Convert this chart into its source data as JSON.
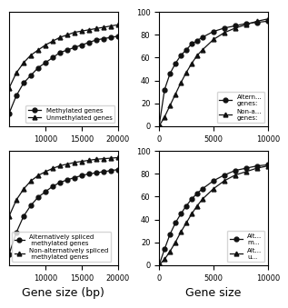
{
  "top_left": {
    "x": [
      5000,
      6000,
      7000,
      8000,
      9000,
      10000,
      11000,
      12000,
      13000,
      14000,
      15000,
      16000,
      17000,
      18000,
      19000,
      20000
    ],
    "y_methylated": [
      95.5,
      96.2,
      96.7,
      97.0,
      97.3,
      97.5,
      97.7,
      97.9,
      98.0,
      98.1,
      98.2,
      98.3,
      98.4,
      98.45,
      98.5,
      98.55
    ],
    "y_unmethylated": [
      96.5,
      97.1,
      97.5,
      97.8,
      98.0,
      98.2,
      98.35,
      98.5,
      98.6,
      98.7,
      98.75,
      98.8,
      98.85,
      98.9,
      98.95,
      99.0
    ],
    "legend1": "Methylated genes",
    "legend2": "Unmethylated genes",
    "xlim": [
      5000,
      20000
    ],
    "ylim": [
      95,
      99.5
    ],
    "xticks": [
      10000,
      15000,
      20000
    ],
    "yticks": [],
    "legend_loc": "lower right"
  },
  "top_right": {
    "x": [
      0,
      500,
      1000,
      1500,
      2000,
      2500,
      3000,
      3500,
      4000,
      5000,
      6000,
      7000,
      8000,
      9000,
      10000
    ],
    "y_alt": [
      0,
      32,
      46,
      55,
      62,
      67,
      72,
      75,
      78,
      83,
      86,
      88,
      90,
      91,
      92
    ],
    "y_nonalt": [
      0,
      8,
      18,
      28,
      38,
      47,
      55,
      62,
      67,
      76,
      82,
      86,
      89,
      92,
      94
    ],
    "legend1": "Altern...\ngenes:",
    "legend2": "Non-a...\ngenes:",
    "xlim": [
      0,
      10000
    ],
    "ylim": [
      0,
      100
    ],
    "xticks": [
      0,
      5000,
      10000
    ],
    "yticks": [
      0,
      20,
      40,
      60,
      80,
      100
    ],
    "legend_loc": "lower right"
  },
  "bottom_left": {
    "x": [
      5000,
      6000,
      7000,
      8000,
      9000,
      10000,
      11000,
      12000,
      13000,
      14000,
      15000,
      16000,
      17000,
      18000,
      19000,
      20000
    ],
    "y_alt": [
      80,
      84,
      87,
      89,
      90.5,
      91.5,
      92.5,
      93.2,
      93.7,
      94.1,
      94.5,
      94.8,
      95.0,
      95.2,
      95.4,
      95.6
    ],
    "y_nonalt": [
      87,
      90,
      92,
      93.5,
      94.5,
      95.2,
      95.8,
      96.3,
      96.6,
      96.9,
      97.1,
      97.3,
      97.5,
      97.6,
      97.7,
      97.8
    ],
    "legend1": "Alternatively spliced\n methylated genes",
    "legend2": "Non-alternatively spliced\n methylated genes",
    "xlim": [
      5000,
      20000
    ],
    "ylim": [
      78,
      99
    ],
    "xticks": [
      10000,
      15000,
      20000
    ],
    "yticks": [],
    "legend_loc": "lower left",
    "xlabel": "Gene size (bp)"
  },
  "bottom_right": {
    "x": [
      0,
      500,
      1000,
      1500,
      2000,
      2500,
      3000,
      3500,
      4000,
      5000,
      6000,
      7000,
      8000,
      9000,
      10000
    ],
    "y_alt_m": [
      0,
      14,
      27,
      37,
      45,
      52,
      58,
      63,
      67,
      74,
      79,
      83,
      85,
      87,
      88
    ],
    "y_alt_u": [
      0,
      5,
      12,
      20,
      29,
      37,
      45,
      52,
      58,
      67,
      74,
      79,
      82,
      85,
      87
    ],
    "legend1": "Alt...\nm...",
    "legend2": "Alt...\nu...",
    "xlim": [
      0,
      10000
    ],
    "ylim": [
      0,
      100
    ],
    "xticks": [
      0,
      5000,
      10000
    ],
    "yticks": [
      0,
      20,
      40,
      60,
      80,
      100
    ],
    "legend_loc": "lower right",
    "xlabel": "Gene size"
  },
  "marker_circle": "o",
  "marker_triangle": "^",
  "linecolor": "#111111",
  "markersize": 3.5,
  "linewidth": 0.9,
  "fontsize_legend": 5.0,
  "fontsize_tick": 6,
  "fontsize_xlabel": 9
}
